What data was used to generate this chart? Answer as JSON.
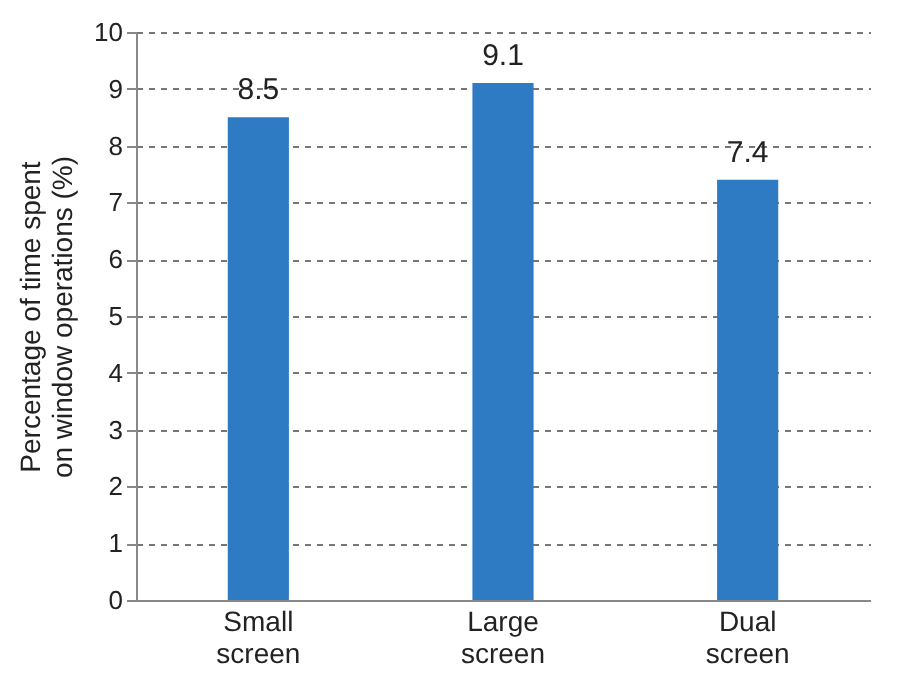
{
  "chart_data": {
    "type": "bar",
    "ylabel": "Percentage of time spent on window operations (%)",
    "categories": [
      "Small screen",
      "Large screen",
      "Dual screen"
    ],
    "values": [
      8.5,
      9.1,
      7.4
    ],
    "color": "#2e7bc4",
    "ylim": [
      0,
      10
    ],
    "yticks": [
      0,
      1,
      2,
      3,
      4,
      5,
      6,
      7,
      8,
      9,
      10
    ],
    "grid": "y",
    "data_labels": true
  }
}
